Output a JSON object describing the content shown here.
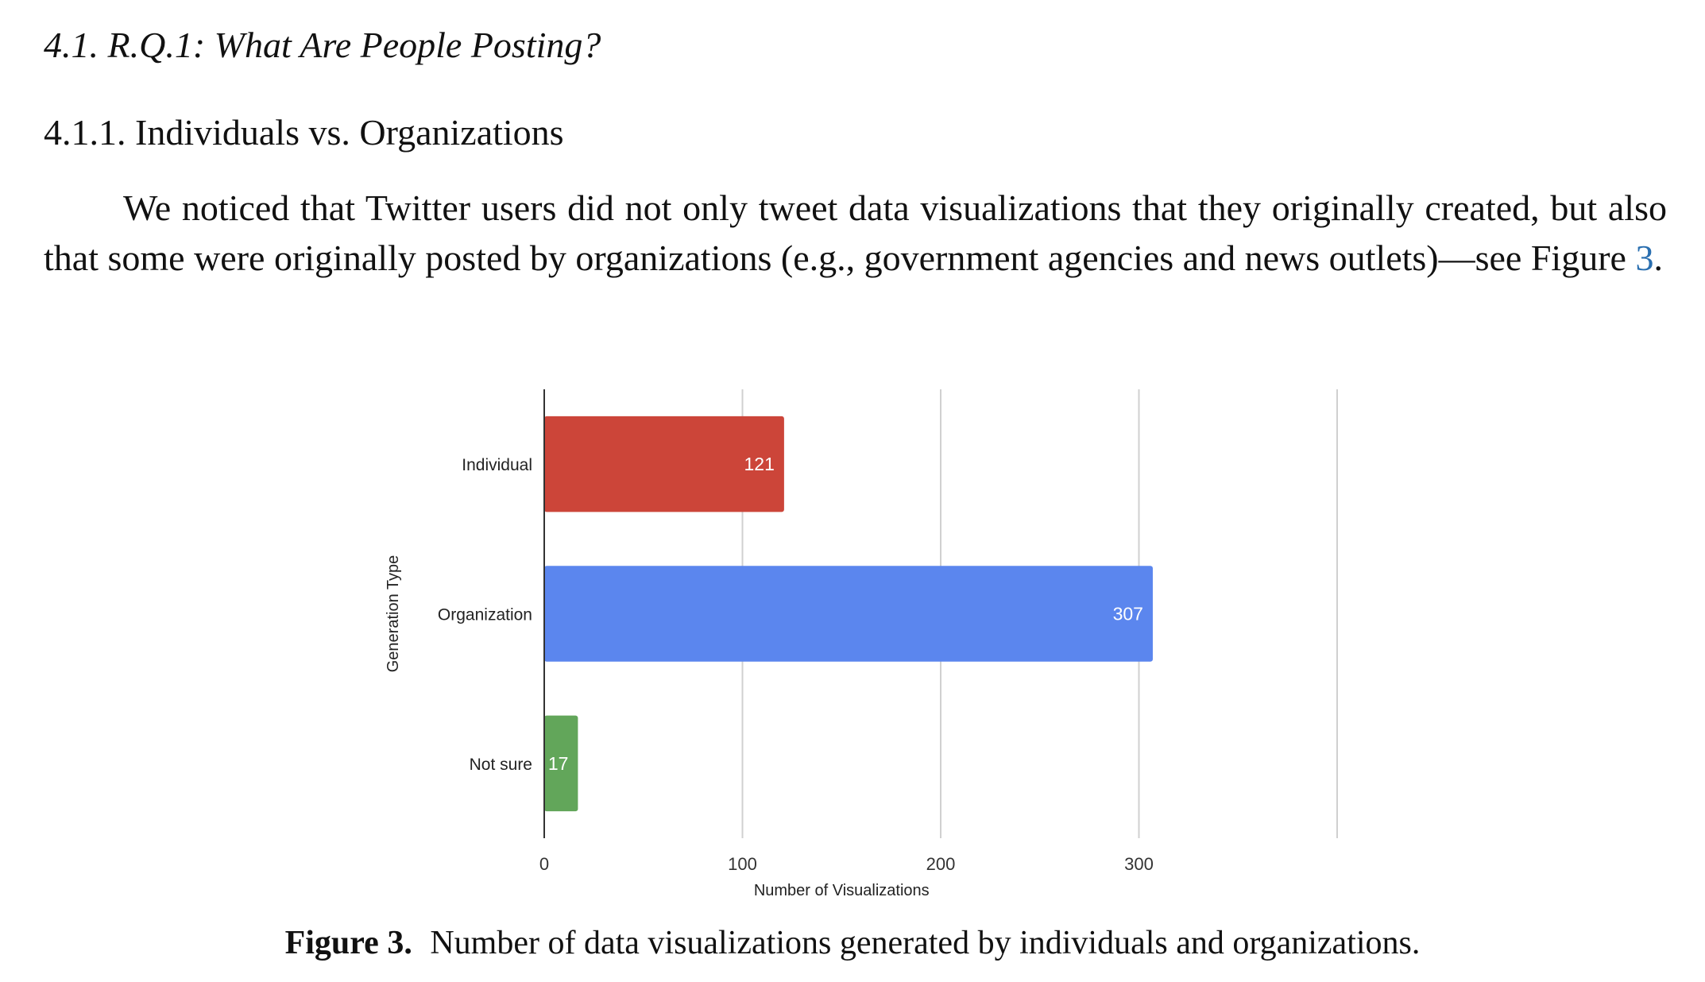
{
  "section": {
    "title": "4.1. R.Q.1: What Are People Posting?"
  },
  "subsection": {
    "title": "4.1.1. Individuals vs. Organizations"
  },
  "paragraph": {
    "text_before_ref": "We noticed that Twitter users did not only tweet data visualizations that they originally created, but also that some were originally posted by organizations (e.g., government agencies and news outlets)—see Figure ",
    "ref": "3",
    "text_after_ref": "."
  },
  "figure": {
    "label": "Figure 3.",
    "caption": "Number of data visualizations generated by individuals and organizations."
  },
  "chart_data": {
    "type": "bar",
    "orientation": "horizontal",
    "categories": [
      "Individual",
      "Organization",
      "Not sure"
    ],
    "values": [
      121,
      307,
      17
    ],
    "colors": [
      "#cc4539",
      "#5b86ee",
      "#62a65a"
    ],
    "data_labels": [
      "121",
      "307",
      "17"
    ],
    "xlabel": "Number of Visualizations",
    "ylabel": "Generation Type",
    "xlim": [
      0,
      400
    ],
    "xticks": [
      0,
      100,
      200,
      300,
      400
    ],
    "xtick_labels": [
      "0",
      "100",
      "200",
      "300",
      ""
    ],
    "grid": true,
    "legend": "none"
  }
}
